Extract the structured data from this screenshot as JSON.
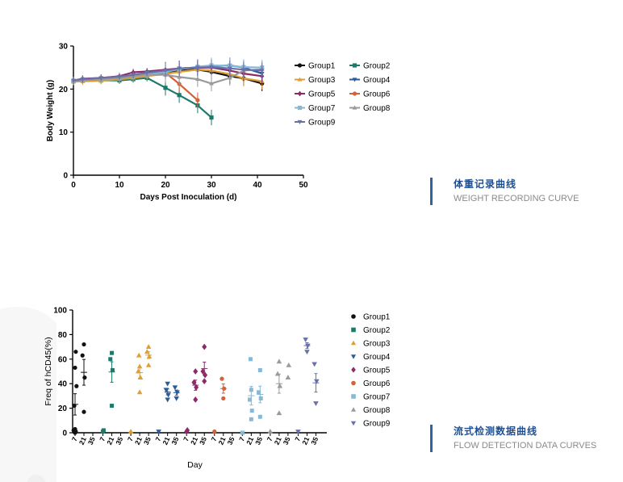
{
  "captions": [
    {
      "title_cn": "体重记录曲线",
      "title_en": "WEIGHT RECORDING CURVE"
    },
    {
      "title_cn": "流式检测数据曲线",
      "title_en": "FLOW DETECTION DATA CURVES"
    }
  ],
  "chart_data": [
    {
      "type": "line",
      "xlabel": "Days Post Inoculation (d)",
      "ylabel": "Body Weight (g)",
      "xlim": [
        0,
        50
      ],
      "ylim": [
        0,
        30
      ],
      "xticks": [
        0,
        10,
        20,
        30,
        40,
        50
      ],
      "yticks": [
        0,
        10,
        20,
        30
      ],
      "grid": false,
      "legend_position": "right",
      "legend_order": [
        "Group1",
        "Group2",
        "Group3",
        "Group4",
        "Group5",
        "Group6",
        "Group7",
        "Group8",
        "Group9"
      ],
      "series": [
        {
          "name": "Group1",
          "color": "#111111",
          "marker": "circle",
          "x": [
            0,
            2,
            6,
            10,
            13,
            16,
            20,
            23,
            27,
            30,
            34,
            37,
            41
          ],
          "y": [
            21.8,
            22.3,
            22.4,
            22.4,
            23.0,
            23.6,
            24.0,
            24.3,
            24.5,
            24.0,
            23.0,
            22.5,
            21.3
          ]
        },
        {
          "name": "Group2",
          "color": "#1d7a6b",
          "marker": "square",
          "x": [
            0,
            2,
            6,
            10,
            13,
            16,
            20,
            23,
            27,
            30
          ],
          "y": [
            21.8,
            22.0,
            22.0,
            22.0,
            22.3,
            22.6,
            20.3,
            18.6,
            16.2,
            13.4
          ]
        },
        {
          "name": "Group3",
          "color": "#e0a030",
          "marker": "triangle-up",
          "x": [
            0,
            2,
            6,
            10,
            13,
            16,
            20,
            23,
            27,
            30,
            34,
            37,
            41
          ],
          "y": [
            21.7,
            21.8,
            21.9,
            22.3,
            22.6,
            23.0,
            23.5,
            24.0,
            24.5,
            24.3,
            23.5,
            22.5,
            21.8
          ]
        },
        {
          "name": "Group4",
          "color": "#2a5c9a",
          "marker": "triangle-down",
          "x": [
            0,
            2,
            6,
            10,
            13,
            16,
            20,
            23,
            27,
            30,
            34,
            37,
            41
          ],
          "y": [
            22.0,
            22.3,
            22.5,
            22.6,
            23.0,
            23.6,
            24.3,
            24.8,
            25.0,
            25.3,
            25.5,
            25.0,
            23.6
          ]
        },
        {
          "name": "Group5",
          "color": "#8c2a6a",
          "marker": "diamond",
          "x": [
            0,
            2,
            6,
            10,
            13,
            16,
            20,
            23,
            27,
            30,
            34,
            37,
            41
          ],
          "y": [
            22.0,
            22.4,
            22.6,
            23.0,
            23.9,
            24.1,
            24.5,
            24.8,
            24.9,
            25.0,
            24.3,
            23.6,
            23.0
          ]
        },
        {
          "name": "Group6",
          "color": "#d2623a",
          "marker": "circle",
          "x": [
            0,
            2,
            6,
            10,
            13,
            16,
            20,
            23,
            27
          ],
          "y": [
            22.0,
            22.3,
            22.5,
            22.8,
            23.1,
            23.4,
            23.8,
            21.2,
            17.4
          ]
        },
        {
          "name": "Group7",
          "color": "#86b8d8",
          "marker": "square",
          "x": [
            0,
            2,
            6,
            10,
            13,
            16,
            20,
            23,
            27,
            30,
            34,
            37,
            41
          ],
          "y": [
            21.9,
            22.1,
            22.3,
            22.6,
            23.0,
            23.4,
            24.0,
            24.6,
            25.2,
            25.5,
            25.4,
            25.1,
            25.0
          ]
        },
        {
          "name": "Group8",
          "color": "#9a9a9a",
          "marker": "triangle-up",
          "x": [
            0,
            2,
            6,
            10,
            13,
            16,
            20,
            23,
            27,
            30,
            34,
            37,
            41
          ],
          "y": [
            21.9,
            22.0,
            22.3,
            22.6,
            23.0,
            23.3,
            23.3,
            22.8,
            22.3,
            21.3,
            22.6,
            24.3,
            24.6
          ]
        },
        {
          "name": "Group9",
          "color": "#6a70a8",
          "marker": "triangle-down",
          "x": [
            0,
            2,
            6,
            10,
            13,
            16,
            20,
            23,
            27,
            30,
            34,
            37,
            41
          ],
          "y": [
            22.0,
            22.3,
            22.6,
            22.9,
            23.3,
            23.8,
            24.3,
            24.8,
            25.0,
            25.1,
            24.8,
            24.5,
            24.3
          ]
        }
      ]
    },
    {
      "type": "scatter",
      "xlabel": "Day",
      "ylabel": "Freq of hCD45(%)",
      "ylim": [
        0,
        100
      ],
      "yticks": [
        0,
        20,
        40,
        60,
        80,
        100
      ],
      "grid": false,
      "legend_position": "right",
      "tick_labels_per_group": [
        "7",
        "21",
        "35"
      ],
      "series": [
        {
          "name": "Group1",
          "color": "#111111",
          "marker": "circle",
          "size": 2.6,
          "day7": [
            0,
            1,
            2,
            3,
            22,
            38,
            53,
            66
          ],
          "day21": [
            17,
            45,
            63,
            72
          ],
          "day35": []
        },
        {
          "name": "Group2",
          "color": "#1d7a6b",
          "marker": "square",
          "size": 2.5,
          "day7": [
            1,
            2
          ],
          "day21": [
            22,
            51,
            60,
            65
          ],
          "day35": []
        },
        {
          "name": "Group3",
          "color": "#e0a030",
          "marker": "triangle-up",
          "size": 3,
          "day7": [
            1
          ],
          "day21": [
            33,
            45,
            50,
            54,
            63
          ],
          "day35": [
            55,
            62,
            66,
            70
          ]
        },
        {
          "name": "Group4",
          "color": "#2a5c9a",
          "marker": "triangle-down",
          "size": 3,
          "day7": [
            1
          ],
          "day21": [
            27,
            31,
            35,
            40
          ],
          "day35": [
            28,
            33,
            37
          ]
        },
        {
          "name": "Group5",
          "color": "#8c2a6a",
          "marker": "diamond",
          "size": 3,
          "day7": [
            1,
            2
          ],
          "day21": [
            27,
            37,
            41,
            50
          ],
          "day35": [
            42,
            47,
            50,
            70
          ]
        },
        {
          "name": "Group6",
          "color": "#d2623a",
          "marker": "circle",
          "size": 2.6,
          "day7": [
            1
          ],
          "day21": [
            28,
            36,
            44
          ],
          "day35": []
        },
        {
          "name": "Group7",
          "color": "#86b8d8",
          "marker": "square",
          "size": 2.5,
          "day7": [
            0
          ],
          "day21": [
            11,
            18,
            27,
            35,
            60
          ],
          "day35": [
            13,
            28,
            33,
            51
          ]
        },
        {
          "name": "Group8",
          "color": "#9a9a9a",
          "marker": "triangle-up",
          "size": 3,
          "day7": [
            1
          ],
          "day21": [
            16,
            38,
            48,
            58
          ],
          "day35": [
            45,
            55
          ]
        },
        {
          "name": "Group9",
          "color": "#6a70a8",
          "marker": "triangle-down",
          "size": 3,
          "day7": [
            1
          ],
          "day21": [
            66,
            71,
            76
          ],
          "day35": [
            24,
            42,
            56
          ]
        }
      ]
    }
  ]
}
